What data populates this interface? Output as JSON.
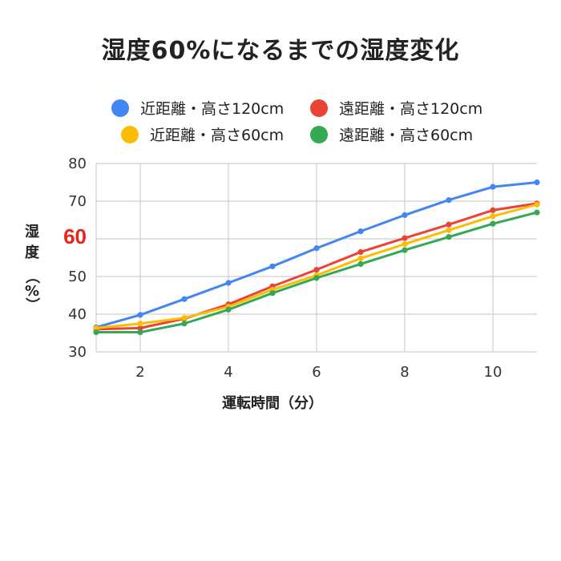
{
  "chart_data": {
    "type": "line",
    "title": "湿度60%になるまでの湿度変化",
    "xlabel": "運転時間（分）",
    "ylabel_chars": [
      "湿",
      "度",
      "（",
      "%",
      "）"
    ],
    "highlight_tick": "60",
    "highlight_color": "#e8251c",
    "xlim": [
      1,
      11
    ],
    "ylim": [
      30,
      80
    ],
    "xticks": [
      2,
      4,
      6,
      8,
      10
    ],
    "yticks": [
      30,
      40,
      50,
      60,
      70,
      80
    ],
    "grid": true,
    "legend_position": "top",
    "x": [
      1,
      2,
      3,
      4,
      5,
      6,
      7,
      8,
      9,
      10,
      11
    ],
    "series": [
      {
        "name": "近距離・高さ120cm",
        "color": "#4285f4",
        "values": [
          36.5,
          39.8,
          44.0,
          48.3,
          52.7,
          57.5,
          62.0,
          66.3,
          70.3,
          73.8,
          75.0
        ]
      },
      {
        "name": "遠距離・高さ120cm",
        "color": "#ea4335",
        "values": [
          36.0,
          36.3,
          38.8,
          42.6,
          47.4,
          51.8,
          56.5,
          60.2,
          63.8,
          67.6,
          69.4
        ]
      },
      {
        "name": "近距離・高さ60cm",
        "color": "#fbbc04",
        "values": [
          36.3,
          37.5,
          39.0,
          42.0,
          46.5,
          50.3,
          54.8,
          58.6,
          62.3,
          66.0,
          69.1
        ]
      },
      {
        "name": "遠距離・高さ60cm",
        "color": "#34a853",
        "values": [
          35.2,
          35.2,
          37.5,
          41.2,
          45.6,
          49.6,
          53.3,
          57.0,
          60.5,
          64.0,
          67.0
        ]
      }
    ]
  }
}
